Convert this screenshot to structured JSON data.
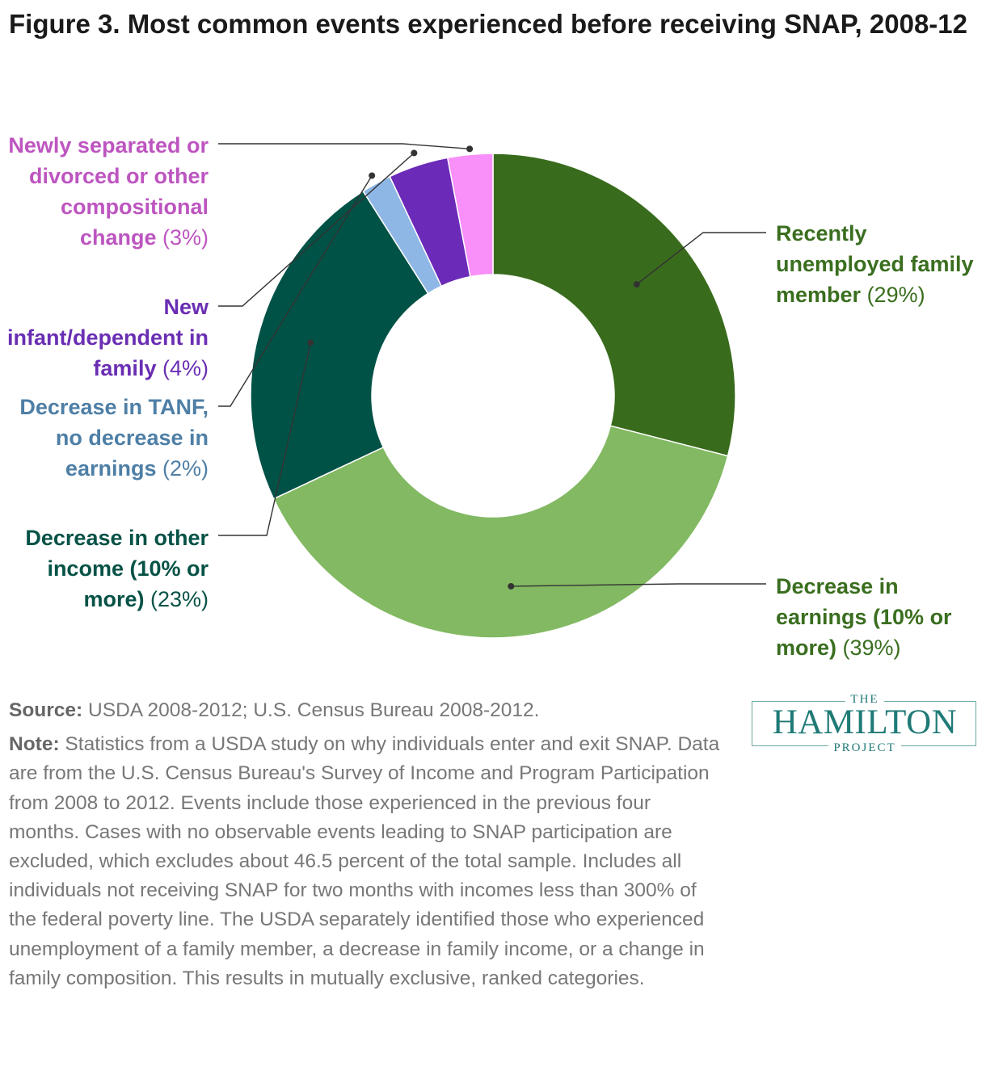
{
  "chart_data": {
    "type": "pie",
    "donut": true,
    "title": "Figure 3. Most common events experienced before receiving SNAP, 2008-12",
    "categories": [
      "Recently unemployed family member",
      "Decrease in earnings (10% or more)",
      "Decrease in other income (10% or more)",
      "Decrease in TANF, no decrease in earnings",
      "New infant/dependent in family",
      "Newly separated or divorced or other compositional change"
    ],
    "values": [
      29,
      39,
      23,
      2,
      4,
      3
    ],
    "colors": [
      "#386b1c",
      "#82b962",
      "#005246",
      "#8fb7e6",
      "#6b2ab8",
      "#f98ff8"
    ],
    "labels": {
      "unemp": {
        "name": "Recently unemployed family member",
        "pct": "(29%)"
      },
      "earn": {
        "name": "Decrease in earnings (10% or more)",
        "pct": "(39%)"
      },
      "other": {
        "name": "Decrease in other income (10% or more)",
        "pct": "(23%)"
      },
      "tanf": {
        "name": "Decrease in TANF, no decrease in earnings",
        "pct": "(2%)"
      },
      "infant": {
        "name": "New infant/dependent in family",
        "pct": "(4%)"
      },
      "sep": {
        "name": "Newly separated or divorced or other compositional change",
        "pct": "(3%)"
      }
    }
  },
  "footer": {
    "source_label": "Source:",
    "source_text": "USDA 2008-2012; U.S. Census Bureau 2008-2012.",
    "note_label": "Note:",
    "note_text": "Statistics from a USDA study on why individuals enter and exit SNAP. Data are from the U.S. Census Bureau's Survey of Income and Program Participation from 2008 to 2012. Events include those experienced in the previous four months. Cases with no observable events leading to SNAP participation are excluded, which excludes about 46.5 percent of the total sample. Includes all individuals not receiving SNAP for two months with incomes less than 300% of the federal poverty line. The USDA separately identified those who experienced unemployment of a family member, a decrease in family income, or a change in family composition. This results in mutually exclusive, ranked categories."
  },
  "logo": {
    "the": "THE",
    "name": "HAMILTON",
    "project": "PROJECT"
  }
}
